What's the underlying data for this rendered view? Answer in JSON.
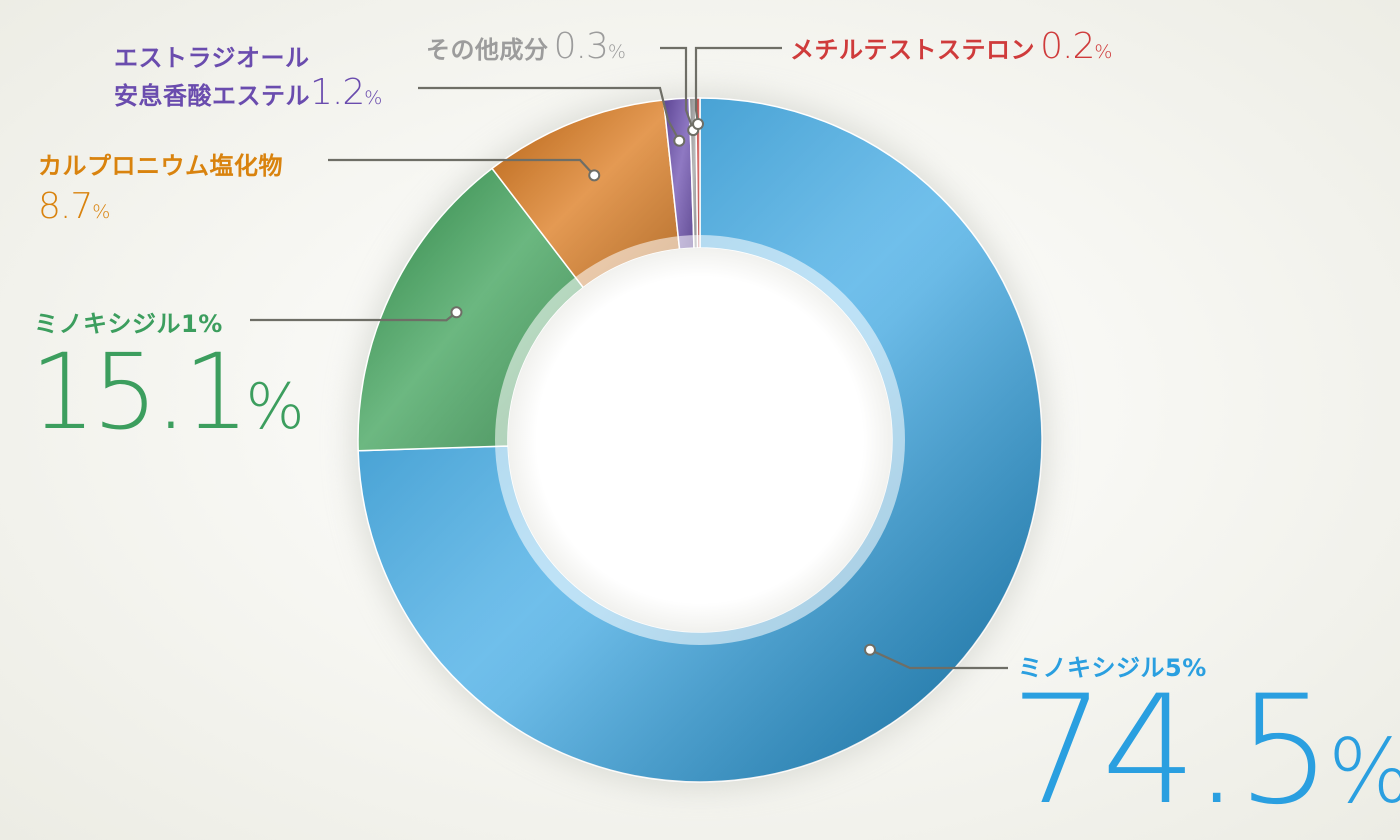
{
  "chart_data": {
    "type": "pie",
    "donut": true,
    "unit": "%",
    "slices": [
      {
        "label": "ミノキシジル5%",
        "value": 74.5,
        "color": "#1f9be0"
      },
      {
        "label": "ミノキシジル1%",
        "value": 15.1,
        "color": "#2e9a4c"
      },
      {
        "label": "カルプロニウム塩化物",
        "value": 8.7,
        "color": "#d86f0c"
      },
      {
        "label": "エストラジオール安息香酸エステル",
        "value": 1.2,
        "color": "#5e3ea8"
      },
      {
        "label": "その他成分",
        "value": 0.3,
        "color": "#9a9a9a"
      },
      {
        "label": "メチルテストステロン",
        "value": 0.2,
        "color": "#c8322e"
      }
    ]
  },
  "labels": {
    "minoxidil5": {
      "name": "ミノキシジル5%",
      "value_num": "74.5",
      "unit": "%",
      "color": "#2a9fe0"
    },
    "minoxidil1": {
      "name": "ミノキシジル1%",
      "value_num": "15.1",
      "unit": "%",
      "color": "#3c9e5e"
    },
    "carpronium": {
      "name": "カルプロニウム塩化物",
      "value_num": "8.7",
      "unit": "%",
      "color": "#d9830e"
    },
    "estradiol": {
      "name_line1": "エストラジオール",
      "name_line2": "安息香酸エステル",
      "value_num": "1.2",
      "unit": "%",
      "color": "#6a4cae"
    },
    "other": {
      "name": "その他成分",
      "value_num": "0.3",
      "unit": "%",
      "color": "#9c9c9c"
    },
    "methyltestosterone": {
      "name": "メチルテストステロン",
      "value_num": "0.2",
      "unit": "%",
      "color": "#cf3b3b"
    }
  }
}
